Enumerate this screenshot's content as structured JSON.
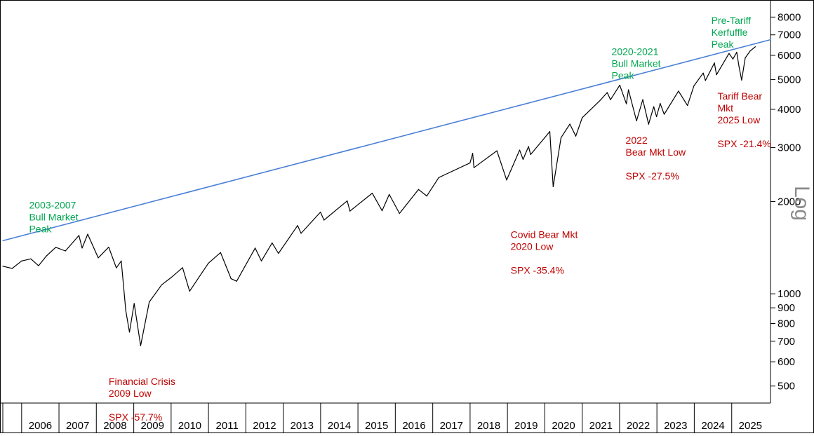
{
  "chart_data": {
    "type": "line",
    "series": [
      {
        "values": [
          [
            "2005-07-01",
            1230
          ],
          [
            "2005-10-01",
            1210
          ],
          [
            "2006-01-01",
            1280
          ],
          [
            "2006-04-01",
            1300
          ],
          [
            "2006-06-15",
            1235
          ],
          [
            "2006-09-01",
            1330
          ],
          [
            "2006-12-01",
            1418
          ],
          [
            "2007-03-05",
            1380
          ],
          [
            "2007-07-15",
            1550
          ],
          [
            "2007-08-15",
            1410
          ],
          [
            "2007-10-09",
            1565
          ],
          [
            "2008-01-20",
            1310
          ],
          [
            "2008-05-01",
            1420
          ],
          [
            "2008-07-15",
            1215
          ],
          [
            "2008-09-01",
            1280
          ],
          [
            "2008-10-15",
            880
          ],
          [
            "2008-11-20",
            750
          ],
          [
            "2009-01-05",
            930
          ],
          [
            "2009-03-09",
            677
          ],
          [
            "2009-06-01",
            940
          ],
          [
            "2009-10-01",
            1070
          ],
          [
            "2010-01-01",
            1130
          ],
          [
            "2010-04-23",
            1217
          ],
          [
            "2010-07-01",
            1020
          ],
          [
            "2010-12-31",
            1258
          ],
          [
            "2011-04-29",
            1363
          ],
          [
            "2011-08-10",
            1120
          ],
          [
            "2011-10-03",
            1099
          ],
          [
            "2012-04-01",
            1410
          ],
          [
            "2012-06-01",
            1280
          ],
          [
            "2012-09-14",
            1465
          ],
          [
            "2012-11-15",
            1355
          ],
          [
            "2013-05-21",
            1670
          ],
          [
            "2013-06-24",
            1575
          ],
          [
            "2013-12-31",
            1848
          ],
          [
            "2014-02-03",
            1740
          ],
          [
            "2014-09-18",
            2010
          ],
          [
            "2014-10-15",
            1862
          ],
          [
            "2015-05-21",
            2130
          ],
          [
            "2015-08-25",
            1867
          ],
          [
            "2015-11-03",
            2110
          ],
          [
            "2016-02-11",
            1829
          ],
          [
            "2016-08-15",
            2190
          ],
          [
            "2016-11-04",
            2085
          ],
          [
            "2017-03-01",
            2395
          ],
          [
            "2017-12-31",
            2674
          ],
          [
            "2018-01-26",
            2873
          ],
          [
            "2018-02-08",
            2580
          ],
          [
            "2018-09-20",
            2930
          ],
          [
            "2018-12-24",
            2351
          ],
          [
            "2019-04-30",
            2945
          ],
          [
            "2019-06-03",
            2745
          ],
          [
            "2019-07-26",
            3025
          ],
          [
            "2019-08-15",
            2847
          ],
          [
            "2019-12-31",
            3231
          ],
          [
            "2020-02-19",
            3386
          ],
          [
            "2020-03-23",
            2237
          ],
          [
            "2020-06-08",
            3232
          ],
          [
            "2020-09-02",
            3580
          ],
          [
            "2020-10-30",
            3270
          ],
          [
            "2021-01-01",
            3756
          ],
          [
            "2021-06-30",
            4297
          ],
          [
            "2021-09-02",
            4537
          ],
          [
            "2021-10-04",
            4300
          ],
          [
            "2022-01-03",
            4796
          ],
          [
            "2022-03-08",
            4170
          ],
          [
            "2022-03-29",
            4631
          ],
          [
            "2022-06-16",
            3667
          ],
          [
            "2022-08-16",
            4305
          ],
          [
            "2022-10-12",
            3577
          ],
          [
            "2022-12-01",
            4080
          ],
          [
            "2022-12-28",
            3783
          ],
          [
            "2023-02-02",
            4180
          ],
          [
            "2023-03-13",
            3855
          ],
          [
            "2023-07-31",
            4588
          ],
          [
            "2023-10-27",
            4117
          ],
          [
            "2023-12-29",
            4770
          ],
          [
            "2024-03-28",
            5254
          ],
          [
            "2024-04-19",
            4967
          ],
          [
            "2024-07-16",
            5667
          ],
          [
            "2024-08-05",
            5186
          ],
          [
            "2024-12-06",
            6090
          ],
          [
            "2025-01-13",
            5836
          ],
          [
            "2025-02-19",
            6144
          ],
          [
            "2025-03-13",
            5521
          ],
          [
            "2025-04-08",
            4982
          ],
          [
            "2025-05-13",
            5886
          ],
          [
            "2025-07-01",
            6205
          ],
          [
            "2025-08-20",
            6400
          ]
        ],
        "color": "#000000"
      },
      {
        "values": [
          [
            "2005-07-01",
            1490
          ],
          [
            "2026-01-15",
            6750
          ]
        ],
        "color": "#4a7fd6"
      }
    ],
    "yscale": "log",
    "ylim": [
      440,
      9000
    ],
    "xlim": [
      "2005-07-01",
      "2026-01-15"
    ],
    "yticks": [
      "8000",
      "7000",
      "6000",
      "5000",
      "4000",
      "3000",
      "2000",
      "1000",
      "900",
      "800",
      "700",
      "600",
      "500"
    ],
    "xticks": [
      "2006",
      "2007",
      "2008",
      "2009",
      "2010",
      "2011",
      "2012",
      "2013",
      "2014",
      "2015",
      "2016",
      "2017",
      "2018",
      "2019",
      "2020",
      "2021",
      "2022",
      "2023",
      "2024",
      "2025"
    ],
    "axis_label_right": "Log",
    "annotations": [
      {
        "x": "2006-03-15",
        "y": 1900,
        "lines": [
          "2003-2007",
          "Bull Market",
          "Peak"
        ],
        "color": "#00a650"
      },
      {
        "x": "2008-05-01",
        "y": 505,
        "lines": [
          "Financial Crisis",
          "2009 Low",
          "",
          "SPX -57.7%"
        ],
        "color": "#c00000"
      },
      {
        "x": "2019-02-01",
        "y": 1520,
        "lines": [
          "Covid Bear Mkt",
          "2020 Low",
          "",
          "SPX -35.4%"
        ],
        "color": "#c00000"
      },
      {
        "x": "2021-10-15",
        "y": 6010,
        "lines": [
          "2020-2021",
          "Bull Market",
          "Peak"
        ],
        "color": "#00a650"
      },
      {
        "x": "2022-03-01",
        "y": 3090,
        "lines": [
          "2022",
          "Bear Mkt Low",
          "",
          "SPX -27.5%"
        ],
        "color": "#c00000"
      },
      {
        "x": "2024-06-15",
        "y": 7600,
        "lines": [
          "Pre-Tariff",
          "Kerfuffle",
          "Peak"
        ],
        "color": "#00a650"
      },
      {
        "x": "2024-08-15",
        "y": 4300,
        "lines": [
          "Tariff Bear",
          "Mkt",
          "2025 Low",
          "",
          "SPX -21.4%"
        ],
        "color": "#c00000"
      }
    ]
  }
}
